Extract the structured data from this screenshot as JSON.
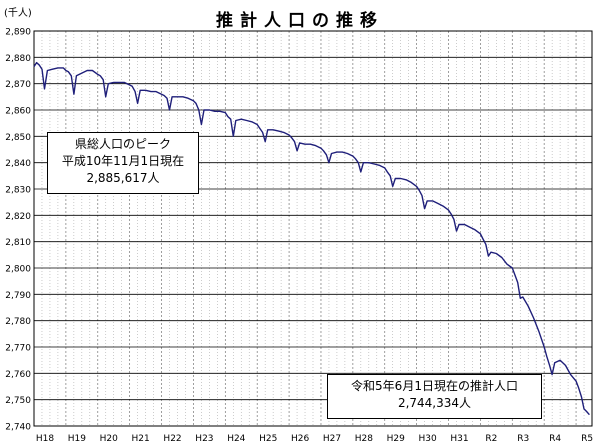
{
  "chart_data": {
    "type": "line",
    "title": "推計人口の推移",
    "ylabel": "(千人)",
    "xlabel": "",
    "ylim": [
      2740,
      2890
    ],
    "y_ticks": [
      2740,
      2750,
      2760,
      2770,
      2780,
      2790,
      2800,
      2810,
      2820,
      2830,
      2840,
      2850,
      2860,
      2870,
      2880,
      2890
    ],
    "y_tick_labels": [
      "2,740",
      "2,750",
      "2,760",
      "2,770",
      "2,780",
      "2,790",
      "2,800",
      "2,810",
      "2,820",
      "2,830",
      "2,840",
      "2,850",
      "2,860",
      "2,870",
      "2,880",
      "2,890"
    ],
    "x_tick_labels": [
      "H18",
      "H19",
      "H20",
      "H21",
      "H22",
      "H23",
      "H24",
      "H25",
      "H26",
      "H27",
      "H28",
      "H29",
      "H30",
      "H31",
      "R2",
      "R3",
      "R4",
      "R5"
    ],
    "x_range_years": [
      2006.0,
      2023.5
    ],
    "grid": true,
    "series_color": "#1f1f7a",
    "series": [
      {
        "name": "",
        "points": [
          [
            2006.0,
            2876.5
          ],
          [
            2006.08,
            2878.0
          ],
          [
            2006.17,
            2877.0
          ],
          [
            2006.25,
            2875.5
          ],
          [
            2006.33,
            2868.0
          ],
          [
            2006.42,
            2875.0
          ],
          [
            2006.58,
            2875.5
          ],
          [
            2006.75,
            2876.0
          ],
          [
            2006.92,
            2876.0
          ],
          [
            2007.0,
            2875.0
          ],
          [
            2007.08,
            2874.5
          ],
          [
            2007.17,
            2873.0
          ],
          [
            2007.25,
            2866.0
          ],
          [
            2007.33,
            2873.0
          ],
          [
            2007.5,
            2874.0
          ],
          [
            2007.67,
            2875.0
          ],
          [
            2007.83,
            2875.0
          ],
          [
            2008.0,
            2873.5
          ],
          [
            2008.08,
            2873.0
          ],
          [
            2008.17,
            2871.5
          ],
          [
            2008.25,
            2865.0
          ],
          [
            2008.33,
            2870.0
          ],
          [
            2008.5,
            2870.5
          ],
          [
            2008.67,
            2870.5
          ],
          [
            2008.83,
            2870.5
          ],
          [
            2009.0,
            2869.5
          ],
          [
            2009.08,
            2869.0
          ],
          [
            2009.17,
            2867.0
          ],
          [
            2009.25,
            2862.5
          ],
          [
            2009.33,
            2867.5
          ],
          [
            2009.5,
            2867.5
          ],
          [
            2009.67,
            2867.0
          ],
          [
            2009.83,
            2867.0
          ],
          [
            2010.0,
            2866.0
          ],
          [
            2010.08,
            2865.5
          ],
          [
            2010.17,
            2864.5
          ],
          [
            2010.25,
            2860.0
          ],
          [
            2010.33,
            2865.0
          ],
          [
            2010.5,
            2865.0
          ],
          [
            2010.67,
            2865.0
          ],
          [
            2010.83,
            2864.5
          ],
          [
            2011.0,
            2863.5
          ],
          [
            2011.08,
            2862.5
          ],
          [
            2011.17,
            2860.0
          ],
          [
            2011.25,
            2854.5
          ],
          [
            2011.33,
            2860.0
          ],
          [
            2011.5,
            2860.0
          ],
          [
            2011.67,
            2859.5
          ],
          [
            2011.83,
            2859.5
          ],
          [
            2012.0,
            2859.0
          ],
          [
            2012.08,
            2857.5
          ],
          [
            2012.17,
            2856.5
          ],
          [
            2012.25,
            2850.0
          ],
          [
            2012.33,
            2856.0
          ],
          [
            2012.5,
            2856.5
          ],
          [
            2012.67,
            2856.0
          ],
          [
            2012.83,
            2855.5
          ],
          [
            2013.0,
            2854.5
          ],
          [
            2013.08,
            2853.0
          ],
          [
            2013.17,
            2851.5
          ],
          [
            2013.25,
            2848.0
          ],
          [
            2013.33,
            2852.5
          ],
          [
            2013.5,
            2852.5
          ],
          [
            2013.67,
            2852.0
          ],
          [
            2013.83,
            2851.5
          ],
          [
            2014.0,
            2850.5
          ],
          [
            2014.08,
            2849.5
          ],
          [
            2014.17,
            2848.0
          ],
          [
            2014.25,
            2844.5
          ],
          [
            2014.33,
            2847.5
          ],
          [
            2014.5,
            2847.0
          ],
          [
            2014.67,
            2847.0
          ],
          [
            2014.83,
            2846.5
          ],
          [
            2015.0,
            2845.5
          ],
          [
            2015.08,
            2844.5
          ],
          [
            2015.17,
            2843.0
          ],
          [
            2015.25,
            2840.0
          ],
          [
            2015.33,
            2843.5
          ],
          [
            2015.5,
            2844.0
          ],
          [
            2015.67,
            2844.0
          ],
          [
            2015.83,
            2843.5
          ],
          [
            2016.0,
            2842.5
          ],
          [
            2016.08,
            2841.5
          ],
          [
            2016.17,
            2840.0
          ],
          [
            2016.25,
            2836.5
          ],
          [
            2016.33,
            2840.0
          ],
          [
            2016.5,
            2840.0
          ],
          [
            2016.67,
            2839.5
          ],
          [
            2016.83,
            2839.0
          ],
          [
            2017.0,
            2838.0
          ],
          [
            2017.08,
            2836.5
          ],
          [
            2017.17,
            2835.0
          ],
          [
            2017.25,
            2831.0
          ],
          [
            2017.33,
            2834.0
          ],
          [
            2017.5,
            2834.0
          ],
          [
            2017.67,
            2833.5
          ],
          [
            2017.83,
            2832.5
          ],
          [
            2018.0,
            2831.0
          ],
          [
            2018.08,
            2829.5
          ],
          [
            2018.17,
            2827.5
          ],
          [
            2018.25,
            2822.5
          ],
          [
            2018.33,
            2825.5
          ],
          [
            2018.5,
            2825.5
          ],
          [
            2018.67,
            2824.5
          ],
          [
            2018.83,
            2823.5
          ],
          [
            2019.0,
            2822.0
          ],
          [
            2019.08,
            2820.5
          ],
          [
            2019.17,
            2818.5
          ],
          [
            2019.25,
            2814.0
          ],
          [
            2019.33,
            2816.5
          ],
          [
            2019.5,
            2816.5
          ],
          [
            2019.67,
            2815.5
          ],
          [
            2019.83,
            2814.5
          ],
          [
            2020.0,
            2813.0
          ],
          [
            2020.08,
            2811.0
          ],
          [
            2020.17,
            2809.0
          ],
          [
            2020.25,
            2804.5
          ],
          [
            2020.33,
            2806.0
          ],
          [
            2020.5,
            2805.5
          ],
          [
            2020.67,
            2804.0
          ],
          [
            2020.83,
            2801.5
          ],
          [
            2021.0,
            2800.0
          ],
          [
            2021.08,
            2797.5
          ],
          [
            2021.17,
            2794.5
          ],
          [
            2021.25,
            2788.5
          ],
          [
            2021.33,
            2789.0
          ],
          [
            2021.5,
            2785.5
          ],
          [
            2021.67,
            2781.0
          ],
          [
            2021.83,
            2776.0
          ],
          [
            2022.0,
            2770.0
          ],
          [
            2022.08,
            2766.5
          ],
          [
            2022.17,
            2763.0
          ],
          [
            2022.25,
            2759.5
          ],
          [
            2022.33,
            2764.0
          ],
          [
            2022.5,
            2765.0
          ],
          [
            2022.67,
            2763.0
          ],
          [
            2022.83,
            2759.5
          ],
          [
            2023.0,
            2757.0
          ],
          [
            2023.08,
            2754.5
          ],
          [
            2023.17,
            2751.0
          ],
          [
            2023.25,
            2746.5
          ],
          [
            2023.33,
            2745.5
          ],
          [
            2023.42,
            2744.3
          ]
        ]
      }
    ],
    "annotations": {
      "peak": [
        "県総人口のピーク",
        "平成10年11月1日現在",
        "2,885,617人"
      ],
      "latest": [
        "令和5年6月1日現在の推計人口",
        "2,744,334人"
      ]
    }
  }
}
